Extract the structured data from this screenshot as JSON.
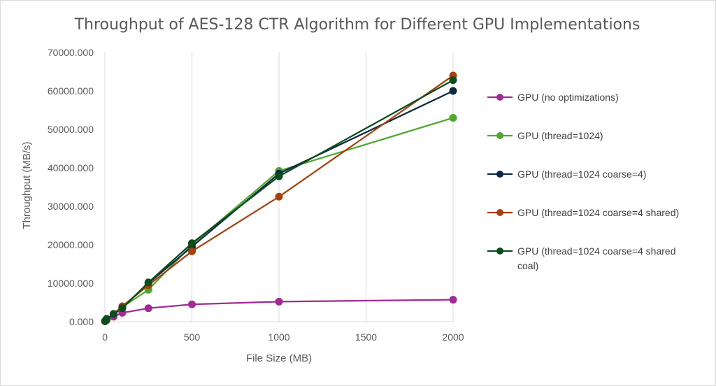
{
  "chart_data": {
    "type": "line",
    "title": "Throughput of AES-128 CTR Algorithm for Different GPU Implementations",
    "xlabel": "File Size (MB)",
    "ylabel": "Throughput (MB/s)",
    "xlim": [
      0,
      2000
    ],
    "ylim": [
      0,
      70000
    ],
    "x_ticks": [
      0,
      500,
      1000,
      1500,
      2000
    ],
    "x_tick_labels": [
      "0",
      "500",
      "1000",
      "1500",
      "2000"
    ],
    "y_ticks": [
      0,
      10000,
      20000,
      30000,
      40000,
      50000,
      60000,
      70000
    ],
    "y_tick_labels": [
      "0.000",
      "10000.000",
      "20000.000",
      "30000.000",
      "40000.000",
      "50000.000",
      "60000.000",
      "70000.000"
    ],
    "grid": "vertical",
    "legend_position": "right",
    "x": [
      1,
      10,
      50,
      100,
      250,
      500,
      1000,
      2000
    ],
    "series": [
      {
        "name": "GPU (no optimizations)",
        "legend_lines": [
          "GPU (no optimizations)"
        ],
        "color": "#a02b93",
        "values": [
          100,
          400,
          1300,
          2300,
          3500,
          4500,
          5200,
          5700
        ]
      },
      {
        "name": "GPU (thread=1024)",
        "legend_lines": [
          "GPU (thread=1024)"
        ],
        "color": "#4ea72e",
        "values": [
          150,
          700,
          2000,
          3800,
          8300,
          20000,
          39200,
          53000
        ]
      },
      {
        "name": "GPU (thread=1024 coarse=4)",
        "legend_lines": [
          "GPU (thread=1024 coarse=4)"
        ],
        "color": "#0e2841",
        "values": [
          150,
          700,
          2000,
          3700,
          10000,
          19500,
          38500,
          60000
        ]
      },
      {
        "name": "GPU (thread=1024 coarse=4 shared)",
        "legend_lines": [
          "GPU (thread=1024 coarse=4 shared)"
        ],
        "color": "#a5400f",
        "values": [
          150,
          700,
          2000,
          4000,
          9500,
          18300,
          32500,
          64000
        ]
      },
      {
        "name": "GPU (thread=1024 coarse=4 shared coal)",
        "legend_lines": [
          "GPU (thread=1024 coarse=4 shared",
          "coal)"
        ],
        "color": "#0b4d1c",
        "values": [
          150,
          700,
          2000,
          3500,
          10200,
          20400,
          37800,
          62800
        ]
      }
    ]
  }
}
